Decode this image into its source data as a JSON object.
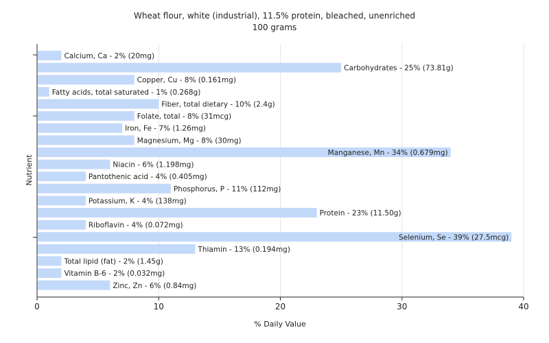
{
  "chart_data": {
    "type": "bar",
    "orientation": "horizontal",
    "title": "Wheat flour, white (industrial), 11.5% protein, bleached, unenriched",
    "subtitle": "100 grams",
    "xlabel": "% Daily Value",
    "ylabel": "Nutrient",
    "xlim": [
      0,
      40
    ],
    "xticks": [
      0,
      10,
      20,
      30,
      40
    ],
    "grid": true,
    "bar_color": "#c3d9f9",
    "bars": [
      {
        "label": "Calcium, Ca - 2% (20mg)",
        "value": 2
      },
      {
        "label": "Carbohydrates - 25% (73.81g)",
        "value": 25
      },
      {
        "label": "Copper, Cu - 8% (0.161mg)",
        "value": 8
      },
      {
        "label": "Fatty acids, total saturated - 1% (0.268g)",
        "value": 1
      },
      {
        "label": "Fiber, total dietary - 10% (2.4g)",
        "value": 10
      },
      {
        "label": "Folate, total - 8% (31mcg)",
        "value": 8
      },
      {
        "label": "Iron, Fe - 7% (1.26mg)",
        "value": 7
      },
      {
        "label": "Magnesium, Mg - 8% (30mg)",
        "value": 8
      },
      {
        "label": "Manganese, Mn - 34% (0.679mg)",
        "value": 34
      },
      {
        "label": "Niacin - 6% (1.198mg)",
        "value": 6
      },
      {
        "label": "Pantothenic acid - 4% (0.405mg)",
        "value": 4
      },
      {
        "label": "Phosphorus, P - 11% (112mg)",
        "value": 11
      },
      {
        "label": "Potassium, K - 4% (138mg)",
        "value": 4
      },
      {
        "label": "Protein - 23% (11.50g)",
        "value": 23
      },
      {
        "label": "Riboflavin - 4% (0.072mg)",
        "value": 4
      },
      {
        "label": "Selenium, Se - 39% (27.5mcg)",
        "value": 39
      },
      {
        "label": "Thiamin - 13% (0.194mg)",
        "value": 13
      },
      {
        "label": "Total lipid (fat) - 2% (1.45g)",
        "value": 2
      },
      {
        "label": "Vitamin B-6 - 2% (0.032mg)",
        "value": 2
      },
      {
        "label": "Zinc, Zn - 6% (0.84mg)",
        "value": 6
      }
    ]
  }
}
